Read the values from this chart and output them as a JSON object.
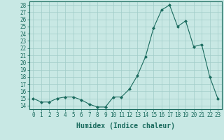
{
  "x": [
    0,
    1,
    2,
    3,
    4,
    5,
    6,
    7,
    8,
    9,
    10,
    11,
    12,
    13,
    14,
    15,
    16,
    17,
    18,
    19,
    20,
    21,
    22,
    23
  ],
  "y": [
    15.0,
    14.5,
    14.5,
    15.0,
    15.2,
    15.2,
    14.8,
    14.2,
    13.8,
    13.8,
    15.2,
    15.2,
    16.3,
    18.2,
    20.8,
    24.8,
    27.3,
    28.0,
    25.0,
    25.8,
    22.2,
    22.5,
    18.0,
    15.0
  ],
  "xlabel": "Humidex (Indice chaleur)",
  "line_color": "#1a6b5e",
  "marker": "D",
  "marker_size": 2,
  "bg_color": "#c8e8e4",
  "grid_color": "#a0ccc8",
  "ylim": [
    13.5,
    28.5
  ],
  "xlim": [
    -0.5,
    23.5
  ],
  "yticks": [
    14,
    15,
    16,
    17,
    18,
    19,
    20,
    21,
    22,
    23,
    24,
    25,
    26,
    27,
    28
  ],
  "xticks": [
    0,
    1,
    2,
    3,
    4,
    5,
    6,
    7,
    8,
    9,
    10,
    11,
    12,
    13,
    14,
    15,
    16,
    17,
    18,
    19,
    20,
    21,
    22,
    23
  ],
  "xtick_labels": [
    "0",
    "1",
    "2",
    "3",
    "4",
    "5",
    "6",
    "7",
    "8",
    "9",
    "10",
    "11",
    "12",
    "13",
    "14",
    "15",
    "16",
    "17",
    "18",
    "19",
    "20",
    "21",
    "22",
    "23"
  ],
  "tick_fontsize": 5.5,
  "xlabel_fontsize": 7.0,
  "linewidth": 0.8
}
